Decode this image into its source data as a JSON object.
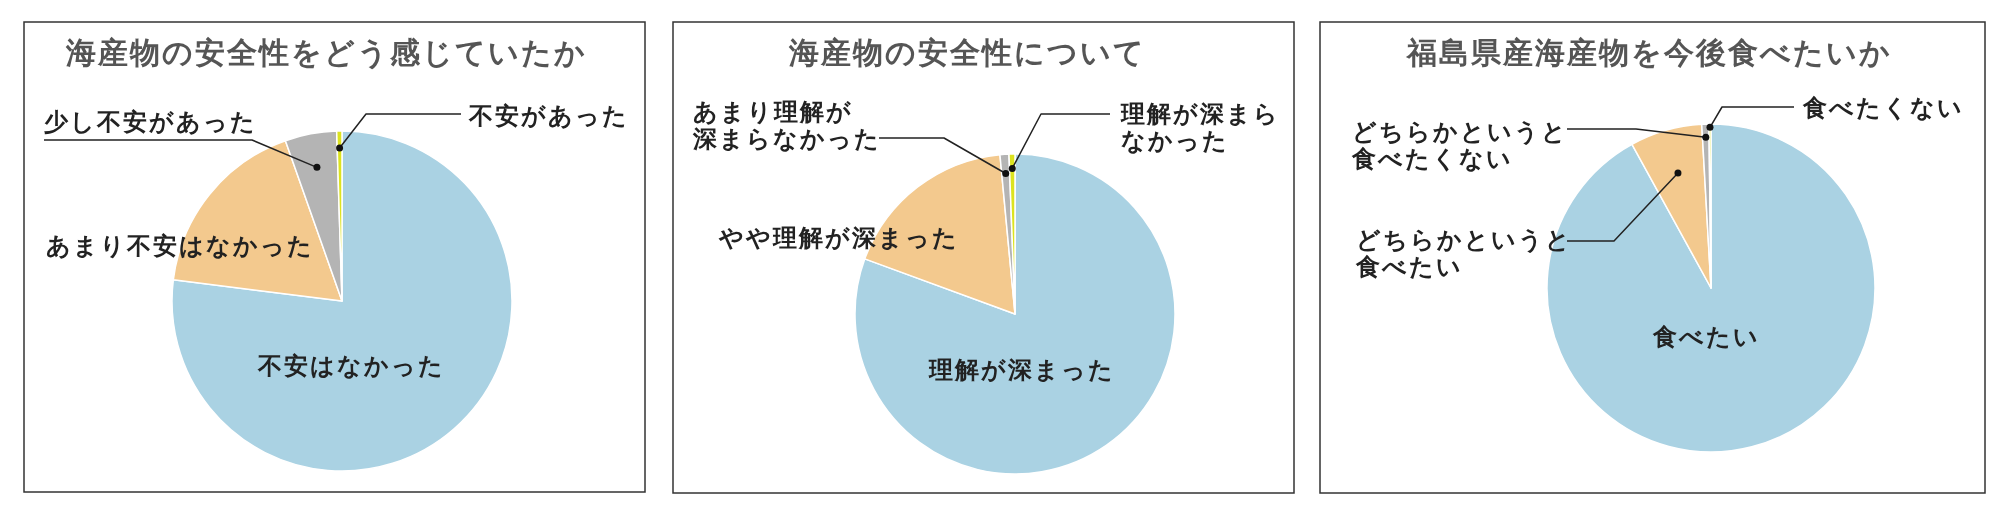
{
  "chart_data": [
    {
      "type": "pie",
      "title": "海産物の安全性をどう感じていたか",
      "categories": [
        "不安はなかった",
        "あまり不安はなかった",
        "少し不安があった",
        "不安があった"
      ],
      "values": [
        77,
        17.6,
        4.9,
        0.5
      ],
      "colors": [
        "#aad2e3",
        "#f3c98e",
        "#b4b4b4",
        "#dce31f"
      ]
    },
    {
      "type": "pie",
      "title": "海産物の安全性について",
      "categories": [
        "理解が深まった",
        "やや理解が深まった",
        "あまり理解が深まらなかった",
        "理解が深まらなかった"
      ],
      "values": [
        80.6,
        17.9,
        0.9,
        0.6
      ],
      "colors": [
        "#aad2e3",
        "#f3c98e",
        "#b4b4b4",
        "#dce31f"
      ]
    },
    {
      "type": "pie",
      "title": "福島県産海産物を今後食べたいか",
      "categories": [
        "食べたい",
        "どちらかというと食べたい",
        "どちらかというと食べたくない",
        "食べたくない"
      ],
      "values": [
        92,
        7.1,
        0.7,
        0.2
      ],
      "colors": [
        "#aad2e3",
        "#f3c98e",
        "#b4b4b4",
        "#dce31f"
      ]
    }
  ]
}
